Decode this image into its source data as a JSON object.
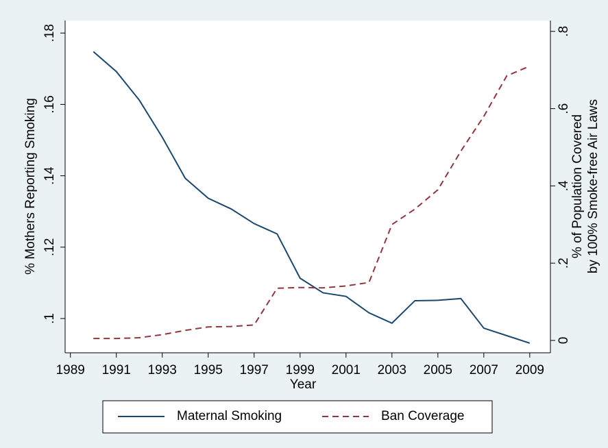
{
  "chart_data": {
    "type": "line",
    "xlabel": "Year",
    "ylabel": "% Mothers Reporting Smoking",
    "y2label": [
      "% of Population Covered",
      "by 100% Smoke-free Air Laws"
    ],
    "x": [
      1990,
      1991,
      1992,
      1993,
      1994,
      1995,
      1996,
      1997,
      1998,
      1999,
      2000,
      2001,
      2002,
      2003,
      2004,
      2005,
      2006,
      2007,
      2008,
      2009
    ],
    "xlim": [
      1988.77,
      2009.9
    ],
    "xticks": [
      1989,
      1991,
      1993,
      1995,
      1997,
      1999,
      2001,
      2003,
      2005,
      2007,
      2009
    ],
    "ylim": [
      0.0904,
      0.1835
    ],
    "yticks": [
      {
        "value": 0.1,
        "label": ".1"
      },
      {
        "value": 0.12,
        "label": ".12"
      },
      {
        "value": 0.14,
        "label": ".14"
      },
      {
        "value": 0.16,
        "label": ".16"
      },
      {
        "value": 0.18,
        "label": ".18"
      }
    ],
    "y2lim": [
      -0.032,
      0.828
    ],
    "y2ticks": [
      0,
      {
        "value": 0.2,
        "label": ".2"
      },
      {
        "value": 0.4,
        "label": ".4"
      },
      {
        "value": 0.6,
        "label": ".6"
      },
      {
        "value": 0.8,
        "label": ".8"
      }
    ],
    "series": [
      {
        "name": "Maternal Smoking",
        "color": "#1a476f",
        "dash": "solid",
        "values": [
          0.1748,
          0.1692,
          0.1612,
          0.1508,
          0.1393,
          0.1337,
          0.1307,
          0.1266,
          0.1237,
          0.1113,
          0.1072,
          0.1062,
          0.1016,
          0.0987,
          0.105,
          0.1051,
          0.1056,
          0.0973,
          0.0952,
          0.0931
        ]
      },
      {
        "name": "Ban Coverage",
        "color": "#90353b",
        "dash": "dashed",
        "axis": "y2",
        "values": [
          0.005,
          0.005,
          0.007,
          0.015,
          0.026,
          0.035,
          0.036,
          0.04,
          0.135,
          0.137,
          0.136,
          0.141,
          0.15,
          0.3,
          0.34,
          0.39,
          0.49,
          0.58,
          0.685,
          0.71
        ]
      }
    ],
    "legend": "bottom",
    "grid": false
  }
}
